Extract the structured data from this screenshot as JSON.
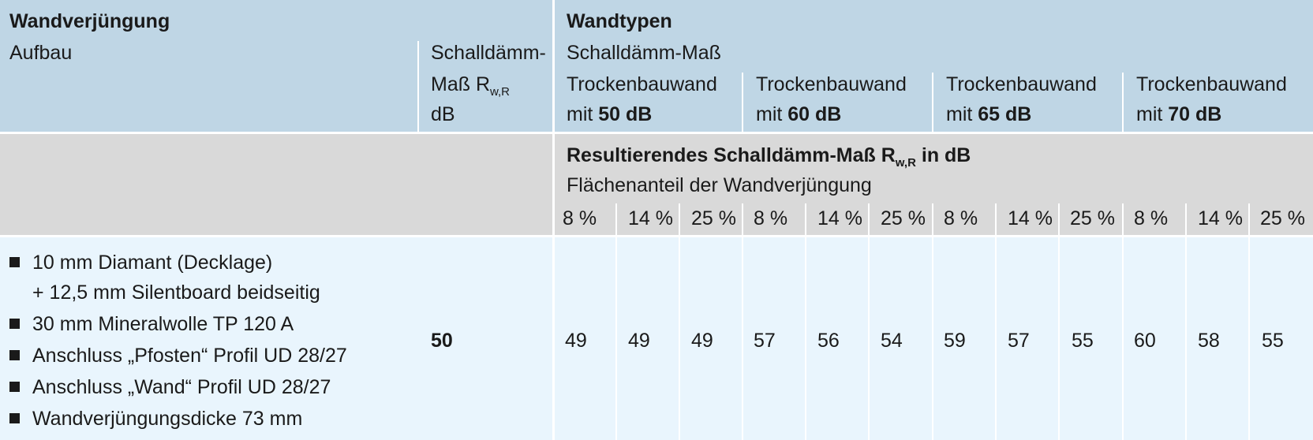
{
  "left": {
    "title": "Wandverjüngung",
    "aufbau_label": "Aufbau",
    "sdm_line1": "Schalldämm-",
    "sdm_line2_main": "Maß R",
    "sdm_line2_sub": "w,R",
    "sdm_line3": "dB"
  },
  "right": {
    "title": "Wandtypen",
    "sdm_label": "Schalldämm-Maß",
    "wall_types": [
      {
        "line1": "Trockenbauwand",
        "prefix": "mit ",
        "value": "50 dB"
      },
      {
        "line1": "Trockenbauwand",
        "prefix": "mit ",
        "value": "60 dB"
      },
      {
        "line1": "Trockenbauwand",
        "prefix": "mit ",
        "value": "65 dB"
      },
      {
        "line1": "Trockenbauwand",
        "prefix": "mit ",
        "value": "70 dB"
      }
    ]
  },
  "subheader": {
    "title_main": "Resultierendes Schalldämm-Maß R",
    "title_sub": "w,R",
    "title_end": " in dB",
    "area_label": "Flächenanteil der Wandverjüngung",
    "percentages": [
      "8 %",
      "14 %",
      "25 %",
      "8 %",
      "14 %",
      "25 %",
      "8 %",
      "14 %",
      "25 %",
      "8 %",
      "14 %",
      "25 %"
    ]
  },
  "row": {
    "items": [
      {
        "bullet": true,
        "text": "10 mm Diamant (Decklage)"
      },
      {
        "bullet": false,
        "text": "+ 12,5 mm Silentboard beidseitig"
      },
      {
        "bullet": true,
        "text": "30 mm Mineralwolle TP 120 A"
      },
      {
        "bullet": true,
        "text": "Anschluss „Pfosten“ Profil UD 28/27"
      },
      {
        "bullet": true,
        "text": "Anschluss „Wand“ Profil UD 28/27"
      },
      {
        "bullet": true,
        "text": "Wandverjüngungsdicke 73 mm"
      }
    ],
    "sdm_value": "50",
    "values": [
      "49",
      "49",
      "49",
      "57",
      "56",
      "54",
      "59",
      "57",
      "55",
      "60",
      "58",
      "55"
    ]
  },
  "colors": {
    "header_bg": "#bfd6e5",
    "subheader_bg": "#d9d9d9",
    "row_bg": "#e9f5fd"
  }
}
